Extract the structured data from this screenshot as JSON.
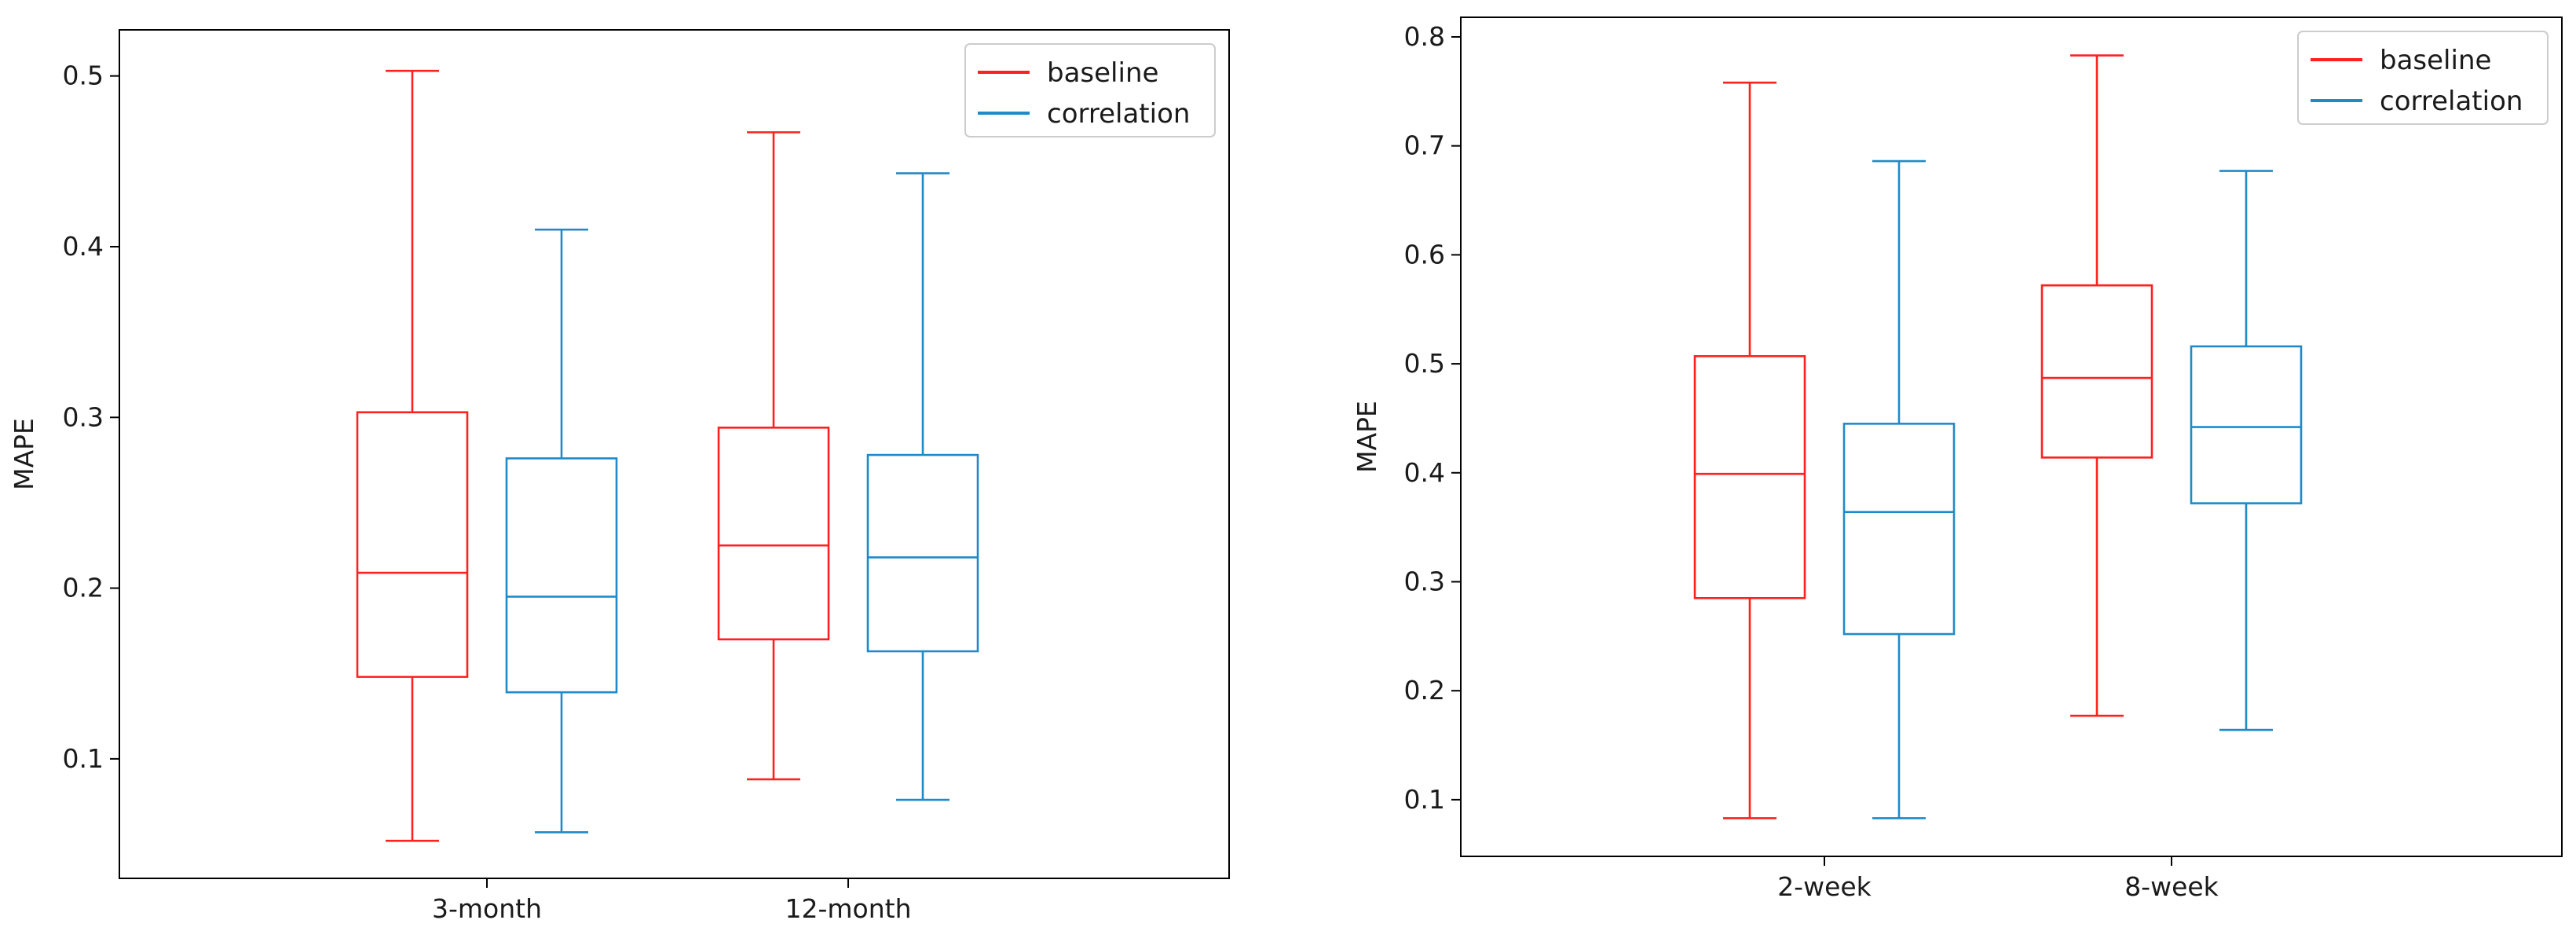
{
  "colors": {
    "baseline": "#ff2020",
    "correlation": "#1f8ac8",
    "axes": "#000000",
    "legend_border": "#cccccc"
  },
  "chart_data": [
    {
      "type": "box",
      "title": "",
      "xlabel": "",
      "ylabel": "MAPE",
      "ylim": [
        0.03,
        0.527
      ],
      "yticks": [
        0.1,
        0.2,
        0.3,
        0.4,
        0.5
      ],
      "ytick_labels": [
        "0.1",
        "0.2",
        "0.3",
        "0.4",
        "0.5"
      ],
      "categories": [
        "3-month",
        "12-month"
      ],
      "legend": {
        "location": "upper right",
        "entries": [
          "baseline",
          "correlation"
        ]
      },
      "series": [
        {
          "name": "baseline",
          "color": "#ff2020",
          "boxes": [
            {
              "whislo": 0.052,
              "q1": 0.148,
              "med": 0.209,
              "q3": 0.303,
              "whishi": 0.503
            },
            {
              "whislo": 0.088,
              "q1": 0.17,
              "med": 0.225,
              "q3": 0.294,
              "whishi": 0.467
            }
          ]
        },
        {
          "name": "correlation",
          "color": "#1f8ac8",
          "boxes": [
            {
              "whislo": 0.057,
              "q1": 0.139,
              "med": 0.195,
              "q3": 0.276,
              "whishi": 0.41
            },
            {
              "whislo": 0.076,
              "q1": 0.163,
              "med": 0.218,
              "q3": 0.278,
              "whishi": 0.443
            }
          ]
        }
      ]
    },
    {
      "type": "box",
      "title": "",
      "xlabel": "",
      "ylabel": "MAPE",
      "ylim": [
        0.048,
        0.818
      ],
      "yticks": [
        0.1,
        0.2,
        0.3,
        0.4,
        0.5,
        0.6,
        0.7,
        0.8
      ],
      "ytick_labels": [
        "0.1",
        "0.2",
        "0.3",
        "0.4",
        "0.5",
        "0.6",
        "0.7",
        "0.8"
      ],
      "categories": [
        "2-week",
        "8-week"
      ],
      "legend": {
        "location": "upper right",
        "entries": [
          "baseline",
          "correlation"
        ]
      },
      "series": [
        {
          "name": "baseline",
          "color": "#ff2020",
          "boxes": [
            {
              "whislo": 0.083,
              "q1": 0.285,
              "med": 0.399,
              "q3": 0.507,
              "whishi": 0.758
            },
            {
              "whislo": 0.177,
              "q1": 0.414,
              "med": 0.487,
              "q3": 0.572,
              "whishi": 0.783
            }
          ]
        },
        {
          "name": "correlation",
          "color": "#1f8ac8",
          "boxes": [
            {
              "whislo": 0.083,
              "q1": 0.252,
              "med": 0.364,
              "q3": 0.445,
              "whishi": 0.686
            },
            {
              "whislo": 0.164,
              "q1": 0.372,
              "med": 0.442,
              "q3": 0.516,
              "whishi": 0.677
            }
          ]
        }
      ]
    }
  ]
}
